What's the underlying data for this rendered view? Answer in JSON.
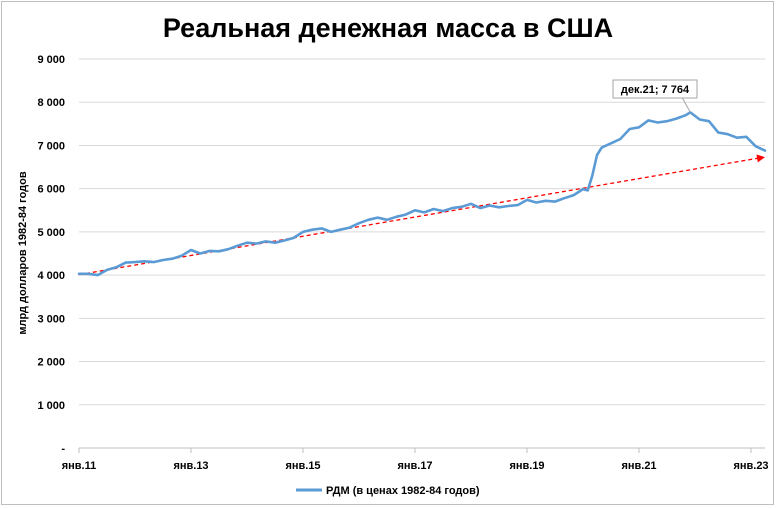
{
  "chart_data": {
    "type": "line",
    "title": "Реальная денежная масса в США",
    "ylabel": "млрд долларов 1982-84 годов",
    "xlabel": "",
    "ylim": [
      0,
      9000
    ],
    "y_ticks": [
      {
        "value": 0,
        "label": "-"
      },
      {
        "value": 1000,
        "label": "1 000"
      },
      {
        "value": 2000,
        "label": "2 000"
      },
      {
        "value": 3000,
        "label": "3 000"
      },
      {
        "value": 4000,
        "label": "4 000"
      },
      {
        "value": 5000,
        "label": "5 000"
      },
      {
        "value": 6000,
        "label": "6 000"
      },
      {
        "value": 7000,
        "label": "7 000"
      },
      {
        "value": 8000,
        "label": "8 000"
      },
      {
        "value": 9000,
        "label": "9 000"
      }
    ],
    "x_range": [
      "2011-01",
      "2023-04"
    ],
    "x_ticks": [
      {
        "date": "2011-01",
        "label": "янв.11"
      },
      {
        "date": "2013-01",
        "label": "янв.13"
      },
      {
        "date": "2015-01",
        "label": "янв.15"
      },
      {
        "date": "2017-01",
        "label": "янв.17"
      },
      {
        "date": "2019-01",
        "label": "янв.19"
      },
      {
        "date": "2021-01",
        "label": "янв.21"
      },
      {
        "date": "2023-01",
        "label": "янв.23"
      }
    ],
    "grid": true,
    "legend_position": "bottom",
    "series": [
      {
        "name": "РДМ (в ценах 1982-84 годов)",
        "color": "#5b9bd5",
        "points": [
          [
            "2011-01",
            4030
          ],
          [
            "2011-03",
            4030
          ],
          [
            "2011-05",
            4000
          ],
          [
            "2011-07",
            4120
          ],
          [
            "2011-09",
            4180
          ],
          [
            "2011-11",
            4290
          ],
          [
            "2012-01",
            4300
          ],
          [
            "2012-03",
            4320
          ],
          [
            "2012-05",
            4300
          ],
          [
            "2012-07",
            4350
          ],
          [
            "2012-09",
            4380
          ],
          [
            "2012-11",
            4450
          ],
          [
            "2013-01",
            4580
          ],
          [
            "2013-03",
            4500
          ],
          [
            "2013-05",
            4560
          ],
          [
            "2013-07",
            4550
          ],
          [
            "2013-09",
            4600
          ],
          [
            "2013-11",
            4680
          ],
          [
            "2014-01",
            4750
          ],
          [
            "2014-03",
            4730
          ],
          [
            "2014-05",
            4780
          ],
          [
            "2014-07",
            4750
          ],
          [
            "2014-09",
            4800
          ],
          [
            "2014-11",
            4860
          ],
          [
            "2015-01",
            5000
          ],
          [
            "2015-03",
            5050
          ],
          [
            "2015-05",
            5080
          ],
          [
            "2015-07",
            5000
          ],
          [
            "2015-09",
            5050
          ],
          [
            "2015-11",
            5100
          ],
          [
            "2016-01",
            5200
          ],
          [
            "2016-03",
            5280
          ],
          [
            "2016-05",
            5330
          ],
          [
            "2016-07",
            5280
          ],
          [
            "2016-09",
            5350
          ],
          [
            "2016-11",
            5400
          ],
          [
            "2017-01",
            5500
          ],
          [
            "2017-03",
            5450
          ],
          [
            "2017-05",
            5530
          ],
          [
            "2017-07",
            5480
          ],
          [
            "2017-09",
            5550
          ],
          [
            "2017-11",
            5580
          ],
          [
            "2018-01",
            5650
          ],
          [
            "2018-03",
            5550
          ],
          [
            "2018-05",
            5610
          ],
          [
            "2018-07",
            5570
          ],
          [
            "2018-09",
            5600
          ],
          [
            "2018-11",
            5620
          ],
          [
            "2019-01",
            5740
          ],
          [
            "2019-03",
            5680
          ],
          [
            "2019-05",
            5720
          ],
          [
            "2019-07",
            5700
          ],
          [
            "2019-09",
            5780
          ],
          [
            "2019-11",
            5850
          ],
          [
            "2020-01",
            5990
          ],
          [
            "2020-02",
            5960
          ],
          [
            "2020-03",
            6300
          ],
          [
            "2020-04",
            6780
          ],
          [
            "2020-05",
            6950
          ],
          [
            "2020-07",
            7050
          ],
          [
            "2020-09",
            7150
          ],
          [
            "2020-11",
            7380
          ],
          [
            "2021-01",
            7420
          ],
          [
            "2021-03",
            7580
          ],
          [
            "2021-05",
            7530
          ],
          [
            "2021-07",
            7560
          ],
          [
            "2021-09",
            7620
          ],
          [
            "2021-11",
            7700
          ],
          [
            "2021-12",
            7764
          ],
          [
            "2022-02",
            7600
          ],
          [
            "2022-04",
            7560
          ],
          [
            "2022-06",
            7300
          ],
          [
            "2022-08",
            7260
          ],
          [
            "2022-10",
            7180
          ],
          [
            "2022-12",
            7200
          ],
          [
            "2023-02",
            6980
          ],
          [
            "2023-04",
            6880
          ]
        ]
      }
    ],
    "trend": {
      "color": "#ff0000",
      "style": "dashed-arrow",
      "points": [
        [
          "2011-01",
          4010
        ],
        [
          "2023-04",
          6730
        ]
      ]
    },
    "annotation": {
      "date": "2021-12",
      "value": 7764,
      "label": "дек.21;  7 764"
    }
  }
}
